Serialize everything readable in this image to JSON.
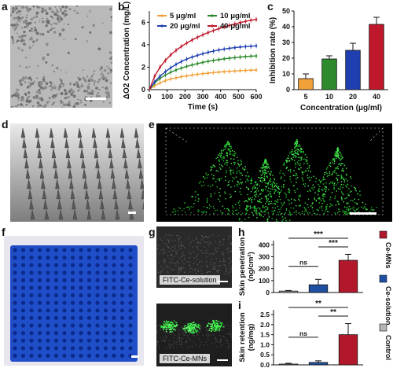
{
  "panels": {
    "a": {
      "label": "a"
    },
    "b": {
      "label": "b"
    },
    "c": {
      "label": "c"
    },
    "d": {
      "label": "d"
    },
    "e": {
      "label": "e"
    },
    "f": {
      "label": "f"
    },
    "g": {
      "label": "g",
      "caption_top": "FITC-Ce-solution",
      "caption_bottom": "FITC-Ce-MNs"
    },
    "h": {
      "label": "h"
    },
    "i": {
      "label": "i"
    }
  },
  "legend_hi": {
    "items": [
      {
        "name": "Ce-MNs",
        "color": "#b2182b"
      },
      {
        "name": "Ce-solution",
        "color": "#1f4fa0"
      },
      {
        "name": "Control",
        "color": "#b4b4b4"
      }
    ]
  },
  "chart_data": [
    {
      "id": "b",
      "type": "line",
      "xlabel": "Time (s)",
      "ylabel": "ΔO2 Concentration (mg/L)",
      "xlim": [
        0,
        600
      ],
      "ylim": [
        0,
        7
      ],
      "xticks": [
        0,
        100,
        200,
        300,
        400,
        500,
        600
      ],
      "yticks": [
        0,
        2,
        4,
        6
      ],
      "x": [
        0,
        30,
        60,
        90,
        120,
        150,
        180,
        210,
        240,
        270,
        300,
        330,
        360,
        390,
        420,
        450,
        480,
        510,
        540,
        570,
        600
      ],
      "legend_position": "top",
      "series": [
        {
          "name": "5 μg/ml",
          "color": "#f0a13a",
          "values": [
            0,
            0.35,
            0.6,
            0.8,
            0.95,
            1.05,
            1.15,
            1.22,
            1.3,
            1.36,
            1.42,
            1.47,
            1.52,
            1.56,
            1.6,
            1.63,
            1.66,
            1.69,
            1.71,
            1.73,
            1.75
          ]
        },
        {
          "name": "10 μg/ml",
          "color": "#2d8a2d",
          "values": [
            0,
            0.6,
            1.0,
            1.3,
            1.55,
            1.75,
            1.92,
            2.07,
            2.2,
            2.32,
            2.42,
            2.52,
            2.6,
            2.67,
            2.74,
            2.8,
            2.85,
            2.9,
            2.94,
            2.98,
            3.0
          ]
        },
        {
          "name": "20 μg/ml",
          "color": "#1f3fb0",
          "values": [
            0,
            0.7,
            1.2,
            1.6,
            1.95,
            2.25,
            2.5,
            2.72,
            2.9,
            3.05,
            3.2,
            3.32,
            3.43,
            3.53,
            3.61,
            3.68,
            3.74,
            3.79,
            3.83,
            3.86,
            3.9
          ]
        },
        {
          "name": "40 μg/ml",
          "color": "#c0182b",
          "values": [
            0,
            1.2,
            2.0,
            2.6,
            3.1,
            3.5,
            3.85,
            4.15,
            4.42,
            4.66,
            4.88,
            5.08,
            5.26,
            5.43,
            5.58,
            5.72,
            5.85,
            5.97,
            6.08,
            6.18,
            6.25
          ]
        }
      ]
    },
    {
      "id": "c",
      "type": "bar",
      "xlabel": "Concentration (μg/ml)",
      "ylabel": "Inhibition rate (%)",
      "ylim": [
        0,
        50
      ],
      "yticks": [
        0,
        10,
        20,
        30,
        40,
        50
      ],
      "categories": [
        "5",
        "10",
        "20",
        "40"
      ],
      "values": [
        7,
        19.5,
        25,
        41.5
      ],
      "errors": [
        3,
        2,
        4.5,
        4.5
      ],
      "colors": [
        "#f0a13a",
        "#2d8a2d",
        "#1f3fb0",
        "#c0182b"
      ]
    },
    {
      "id": "h",
      "type": "bar",
      "ylabel": "Skin penetration (ng/cm²)",
      "ylim": [
        0,
        400
      ],
      "yticks": [
        0,
        100,
        200,
        300,
        400
      ],
      "categories": [
        "Control",
        "Ce-solution",
        "Ce-MNs"
      ],
      "values": [
        12,
        65,
        270
      ],
      "errors": [
        5,
        45,
        50
      ],
      "colors": [
        "#b4b4b4",
        "#1f4fa0",
        "#b2182b"
      ],
      "significance": [
        {
          "from": 0,
          "to": 1,
          "label": "ns"
        },
        {
          "from": 1,
          "to": 2,
          "label": "***"
        },
        {
          "from": 0,
          "to": 2,
          "label": "***"
        }
      ]
    },
    {
      "id": "i",
      "type": "bar",
      "ylabel": "Skin retention (ng/mg)",
      "ylim": [
        0,
        2.5
      ],
      "yticks": [
        0.0,
        0.5,
        1.0,
        1.5,
        2.0,
        2.5
      ],
      "categories": [
        "Control",
        "Ce-solution",
        "Ce-MNs"
      ],
      "values": [
        0.04,
        0.12,
        1.5
      ],
      "errors": [
        0.04,
        0.08,
        0.55
      ],
      "colors": [
        "#b4b4b4",
        "#1f4fa0",
        "#b2182b"
      ],
      "significance": [
        {
          "from": 0,
          "to": 1,
          "label": "ns"
        },
        {
          "from": 1,
          "to": 2,
          "label": "**"
        },
        {
          "from": 0,
          "to": 2,
          "label": "**"
        }
      ]
    }
  ]
}
